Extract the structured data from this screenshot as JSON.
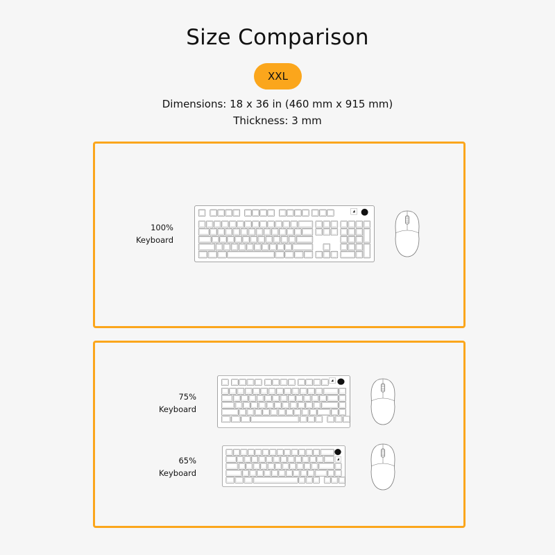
{
  "title": "Size Comparison",
  "size_badge": "XXL",
  "dimensions": "Dimensions: 18 x 36 in (460 mm x 915 mm)",
  "thickness": "Thickness: 3 mm",
  "accent_color": "#fba61c",
  "panels": [
    {
      "items": [
        {
          "label_1": "100%",
          "label_2": "Keyboard"
        }
      ]
    },
    {
      "items": [
        {
          "label_1": "75%",
          "label_2": "Keyboard"
        },
        {
          "label_1": "65%",
          "label_2": "Keyboard"
        }
      ]
    }
  ]
}
